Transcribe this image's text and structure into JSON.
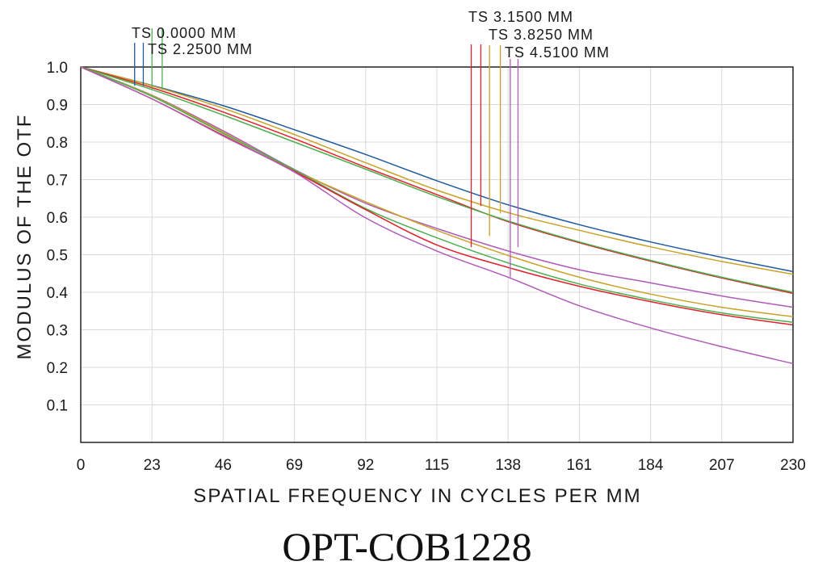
{
  "chart_data": {
    "type": "line",
    "title": "OPT-COB1228",
    "xlabel": "SPATIAL FREQUENCY IN CYCLES PER MM",
    "ylabel": "MODULUS OF THE OTF",
    "xlim": [
      0,
      230
    ],
    "ylim": [
      0,
      1.0
    ],
    "x_ticks": [
      "0",
      "23",
      "46",
      "69",
      "92",
      "115",
      "138",
      "161",
      "184",
      "207",
      "230"
    ],
    "y_ticks": [
      "0.1",
      "0.2",
      "0.3",
      "0.4",
      "0.5",
      "0.6",
      "0.7",
      "0.8",
      "0.9",
      "1.0"
    ],
    "grid": true,
    "x": [
      0,
      23,
      46,
      69,
      92,
      115,
      138,
      161,
      184,
      207,
      230
    ],
    "legend": [
      {
        "label": "TS  0.0000  MM",
        "color": "#1f5a9e"
      },
      {
        "label": "TS  2.2500  MM",
        "color": "#4caf50"
      },
      {
        "label": "TS  3.1500  MM",
        "color": "#e0202a"
      },
      {
        "label": "TS  3.8250  MM",
        "color": "#c9a227"
      },
      {
        "label": "TS  4.5100  MM",
        "color": "#b05bb8"
      }
    ],
    "series": [
      {
        "color": "#1f5a9e",
        "values": [
          1.0,
          0.951,
          0.897,
          0.833,
          0.767,
          0.697,
          0.633,
          0.58,
          0.534,
          0.493,
          0.455
        ]
      },
      {
        "color": "#c9a227",
        "values": [
          1.0,
          0.95,
          0.89,
          0.82,
          0.745,
          0.672,
          0.612,
          0.565,
          0.521,
          0.482,
          0.448
        ]
      },
      {
        "color": "#e0202a",
        "values": [
          1.0,
          0.945,
          0.88,
          0.809,
          0.733,
          0.66,
          0.588,
          0.532,
          0.483,
          0.438,
          0.397
        ]
      },
      {
        "color": "#4caf50",
        "values": [
          1.0,
          0.94,
          0.872,
          0.8,
          0.728,
          0.655,
          0.59,
          0.534,
          0.485,
          0.44,
          0.4
        ]
      },
      {
        "color": "#b05bb8",
        "values": [
          1.0,
          0.925,
          0.83,
          0.727,
          0.637,
          0.57,
          0.51,
          0.46,
          0.425,
          0.39,
          0.36
        ]
      },
      {
        "color": "#c9a227",
        "values": [
          1.0,
          0.924,
          0.826,
          0.725,
          0.641,
          0.565,
          0.498,
          0.44,
          0.395,
          0.36,
          0.335
        ]
      },
      {
        "color": "#4caf50",
        "values": [
          1.0,
          0.922,
          0.823,
          0.726,
          0.623,
          0.545,
          0.478,
          0.422,
          0.38,
          0.345,
          0.32
        ]
      },
      {
        "color": "#e0202a",
        "values": [
          1.0,
          0.915,
          0.818,
          0.722,
          0.62,
          0.526,
          0.466,
          0.416,
          0.375,
          0.34,
          0.313
        ]
      },
      {
        "color": "#b05bb8",
        "values": [
          1.0,
          0.915,
          0.816,
          0.72,
          0.598,
          0.51,
          0.44,
          0.364,
          0.305,
          0.255,
          0.21
        ]
      }
    ],
    "markers": [
      {
        "legend_index": 0,
        "x": 17.4,
        "y_end": 0.95
      },
      {
        "legend_index": 0,
        "x": 20.2,
        "y_end": 0.95
      },
      {
        "legend_index": 1,
        "x": 23.0,
        "y_end": 0.94
      },
      {
        "legend_index": 1,
        "x": 26.3,
        "y_end": 0.94
      },
      {
        "legend_index": 2,
        "x": 126.1,
        "y_end": 0.52
      },
      {
        "legend_index": 2,
        "x": 129.2,
        "y_end": 0.63
      },
      {
        "legend_index": 3,
        "x": 132.0,
        "y_end": 0.55
      },
      {
        "legend_index": 3,
        "x": 135.5,
        "y_end": 0.61
      },
      {
        "legend_index": 4,
        "x": 138.7,
        "y_end": 0.44
      },
      {
        "legend_index": 4,
        "x": 141.2,
        "y_end": 0.52
      }
    ]
  }
}
